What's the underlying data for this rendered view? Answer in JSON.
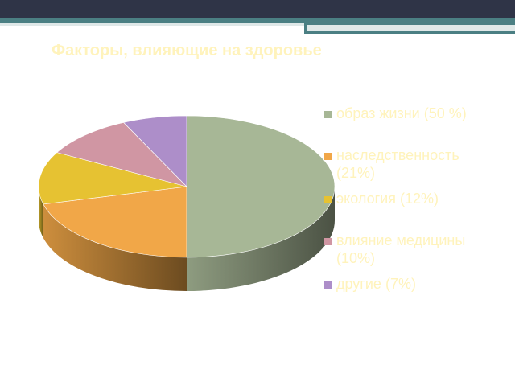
{
  "slide": {
    "title": "Факторы, влияющие на здоровье"
  },
  "chart_data": {
    "type": "pie",
    "title": "Факторы, влияющие на здоровье",
    "style": "3d",
    "legend_position": "right",
    "series": [
      {
        "label": "образ жизни (50 %)",
        "value": 50,
        "color": "#a7b796"
      },
      {
        "label": "наследственность (21%)",
        "value": 21,
        "color": "#f1a748"
      },
      {
        "label": "экология (12%)",
        "value": 12,
        "color": "#e6c232"
      },
      {
        "label": "влияние медицины (10%)",
        "value": 10,
        "color": "#d096a3"
      },
      {
        "label": "другие (7%)",
        "value": 7,
        "color": "#ad8ec9"
      }
    ]
  }
}
